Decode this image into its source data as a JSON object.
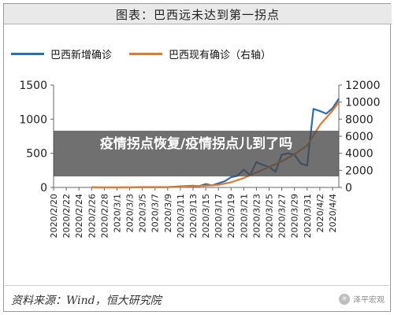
{
  "chart_data": {
    "type": "line",
    "title": "图表：巴西远未达到第一拐点",
    "categories": [
      "2020/2/20",
      "2020/2/22",
      "2020/2/24",
      "2020/2/26",
      "2020/2/28",
      "2020/3/1",
      "2020/3/3",
      "2020/3/5",
      "2020/3/7",
      "2020/3/9",
      "2020/3/11",
      "2020/3/13",
      "2020/3/15",
      "2020/3/17",
      "2020/3/19",
      "2020/3/21",
      "2020/3/23",
      "2020/3/25",
      "2020/3/27",
      "2020/3/29",
      "2020/3/31",
      "2020/4/2",
      "2020/4/4"
    ],
    "left_axis": {
      "ticks": [
        "0",
        "500",
        "1000",
        "1500"
      ],
      "ylim": [
        0,
        1500
      ]
    },
    "right_axis": {
      "ticks": [
        "0",
        "2000",
        "4000",
        "6000",
        "8000",
        "10000",
        "12000"
      ],
      "ylim": [
        0,
        12000
      ]
    },
    "series": [
      {
        "name": "巴西新增确诊",
        "axis": "left",
        "color": "#2a6eb5",
        "points": [
          [
            "2020/2/26",
            1
          ],
          [
            "2020/2/28",
            0
          ],
          [
            "2020/3/1",
            0
          ],
          [
            "2020/3/3",
            0
          ],
          [
            "2020/3/5",
            5
          ],
          [
            "2020/3/7",
            5
          ],
          [
            "2020/3/9",
            5
          ],
          [
            "2020/3/11",
            15
          ],
          [
            "2020/3/13",
            25
          ],
          [
            "2020/3/14",
            20
          ],
          [
            "2020/3/15",
            50
          ],
          [
            "2020/3/16",
            30
          ],
          [
            "2020/3/17",
            60
          ],
          [
            "2020/3/18",
            90
          ],
          [
            "2020/3/19",
            150
          ],
          [
            "2020/3/20",
            170
          ],
          [
            "2020/3/21",
            260
          ],
          [
            "2020/3/22",
            180
          ],
          [
            "2020/3/23",
            370
          ],
          [
            "2020/3/24",
            330
          ],
          [
            "2020/3/25",
            300
          ],
          [
            "2020/3/26",
            230
          ],
          [
            "2020/3/27",
            480
          ],
          [
            "2020/3/28",
            500
          ],
          [
            "2020/3/29",
            480
          ],
          [
            "2020/3/30",
            350
          ],
          [
            "2020/3/31",
            320
          ],
          [
            "2020/4/1",
            1150
          ],
          [
            "2020/4/2",
            1120
          ],
          [
            "2020/4/3",
            1080
          ],
          [
            "2020/4/4",
            1160
          ],
          [
            "2020/4/5",
            1300
          ]
        ]
      },
      {
        "name": "巴西现有确诊（右轴）",
        "axis": "right",
        "color": "#e07a2e",
        "points": [
          [
            "2020/2/26",
            1
          ],
          [
            "2020/3/1",
            2
          ],
          [
            "2020/3/5",
            13
          ],
          [
            "2020/3/9",
            25
          ],
          [
            "2020/3/11",
            52
          ],
          [
            "2020/3/13",
            150
          ],
          [
            "2020/3/15",
            200
          ],
          [
            "2020/3/17",
            300
          ],
          [
            "2020/3/19",
            600
          ],
          [
            "2020/3/21",
            1100
          ],
          [
            "2020/3/23",
            1750
          ],
          [
            "2020/3/25",
            2400
          ],
          [
            "2020/3/27",
            3050
          ],
          [
            "2020/3/29",
            3900
          ],
          [
            "2020/3/31",
            4900
          ],
          [
            "2020/4/2",
            7300
          ],
          [
            "2020/4/4",
            9000
          ],
          [
            "2020/4/5",
            10000
          ]
        ]
      }
    ],
    "grid": false,
    "legend_position": "top"
  },
  "banner_text": "疫情拐点恢复/疫情拐点儿到了吗",
  "source": "资料来源：Wind，恒大研究院",
  "watermark": "泽平宏观",
  "watermark_logo": "✳"
}
